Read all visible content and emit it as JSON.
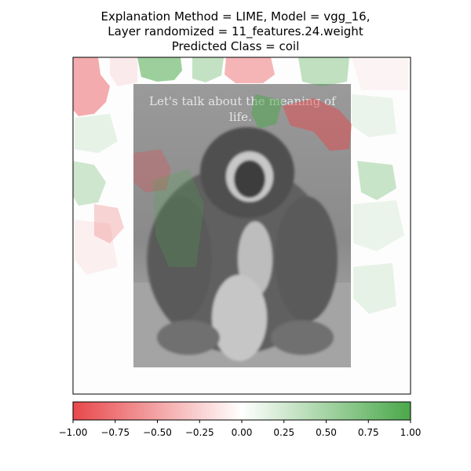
{
  "title_lines": [
    "Explanation Method = LIME, Model = vgg_16,",
    "Layer randomized = 11_features.24.weight",
    "Predicted Class = coil"
  ],
  "image_caption": "Let's talk about the meaning of life.",
  "chart_data": {
    "type": "heatmap",
    "title": "Explanation Method = LIME, Model = vgg_16, Layer randomized = 11_features.24.weight, Predicted Class = coil",
    "colorbar": {
      "min": -1.0,
      "max": 1.0,
      "ticks": [
        -1.0,
        -0.75,
        -0.5,
        -0.25,
        0.0,
        0.25,
        0.5,
        0.75,
        1.0
      ],
      "tick_labels": [
        "−1.00",
        "−0.75",
        "−0.50",
        "−0.25",
        "0.00",
        "0.25",
        "0.50",
        "0.75",
        "1.00"
      ],
      "colors": {
        "negative": "#e8484b",
        "neutral": "#ffffff",
        "positive": "#4aa84a"
      }
    },
    "segments": [
      {
        "sign": "negative",
        "weight": 0.55
      },
      {
        "sign": "positive",
        "weight": 0.7
      },
      {
        "sign": "positive",
        "weight": 0.3
      },
      {
        "sign": "negative",
        "weight": 0.45
      },
      {
        "sign": "positive",
        "weight": 0.35
      },
      {
        "sign": "negative",
        "weight": 0.6
      },
      {
        "sign": "positive",
        "weight": 0.65
      },
      {
        "sign": "negative",
        "weight": 0.25
      },
      {
        "sign": "positive",
        "weight": 0.2
      },
      {
        "sign": "negative",
        "weight": 0.15
      },
      {
        "sign": "positive",
        "weight": 0.25
      },
      {
        "sign": "positive",
        "weight": 0.15
      }
    ]
  }
}
